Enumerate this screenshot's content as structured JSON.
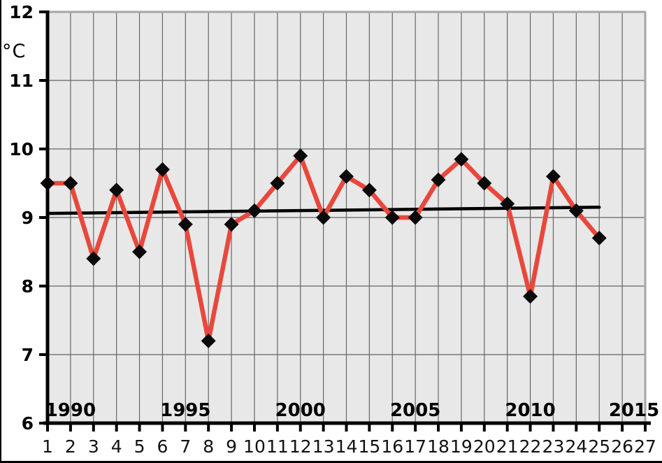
{
  "chart_data": {
    "type": "line",
    "title": "",
    "xlabel": "",
    "ylabel": "°C",
    "ylim": [
      6,
      12
    ],
    "yticks": [
      6,
      7,
      8,
      9,
      10,
      11,
      12
    ],
    "ytick_labels": [
      "6",
      "7",
      "8",
      "9",
      "10",
      "11",
      "12"
    ],
    "x_count": 27,
    "x_tick_labels": [
      "1",
      "2",
      "3",
      "4",
      "5",
      "6",
      "7",
      "8",
      "9",
      "10",
      "11",
      "12",
      "13",
      "14",
      "15",
      "16",
      "17",
      "18",
      "19",
      "20",
      "21",
      "22",
      "23",
      "24",
      "25",
      "26",
      "27"
    ],
    "year_annotations": [
      {
        "label": "1990",
        "index": 2
      },
      {
        "label": "1995",
        "index": 7
      },
      {
        "label": "2000",
        "index": 12
      },
      {
        "label": "2005",
        "index": 17
      },
      {
        "label": "2010",
        "index": 22
      },
      {
        "label": "2015",
        "index": 27
      }
    ],
    "grid": true,
    "legend": "none",
    "plot_bg": "#e8e8e8",
    "grid_color": "#666666",
    "border_color": "#a6a6a6",
    "axis_color": "#000000",
    "series": [
      {
        "name": "temperature",
        "type": "line",
        "color": "#e8483c",
        "marker": "diamond",
        "marker_color": "#0a0a0a",
        "x_start_index": 1,
        "values": [
          9.5,
          9.5,
          8.4,
          9.4,
          8.5,
          9.7,
          8.9,
          7.2,
          8.9,
          9.1,
          9.5,
          9.9,
          9.0,
          9.6,
          9.4,
          9.0,
          9.0,
          9.55,
          9.85,
          9.5,
          9.2,
          7.85,
          9.6,
          9.1,
          8.7
        ]
      },
      {
        "name": "trend-line",
        "type": "straight-line",
        "color": "#000000",
        "from": {
          "index": 1,
          "value": 9.06
        },
        "to": {
          "index": 25,
          "value": 9.15
        }
      }
    ]
  }
}
